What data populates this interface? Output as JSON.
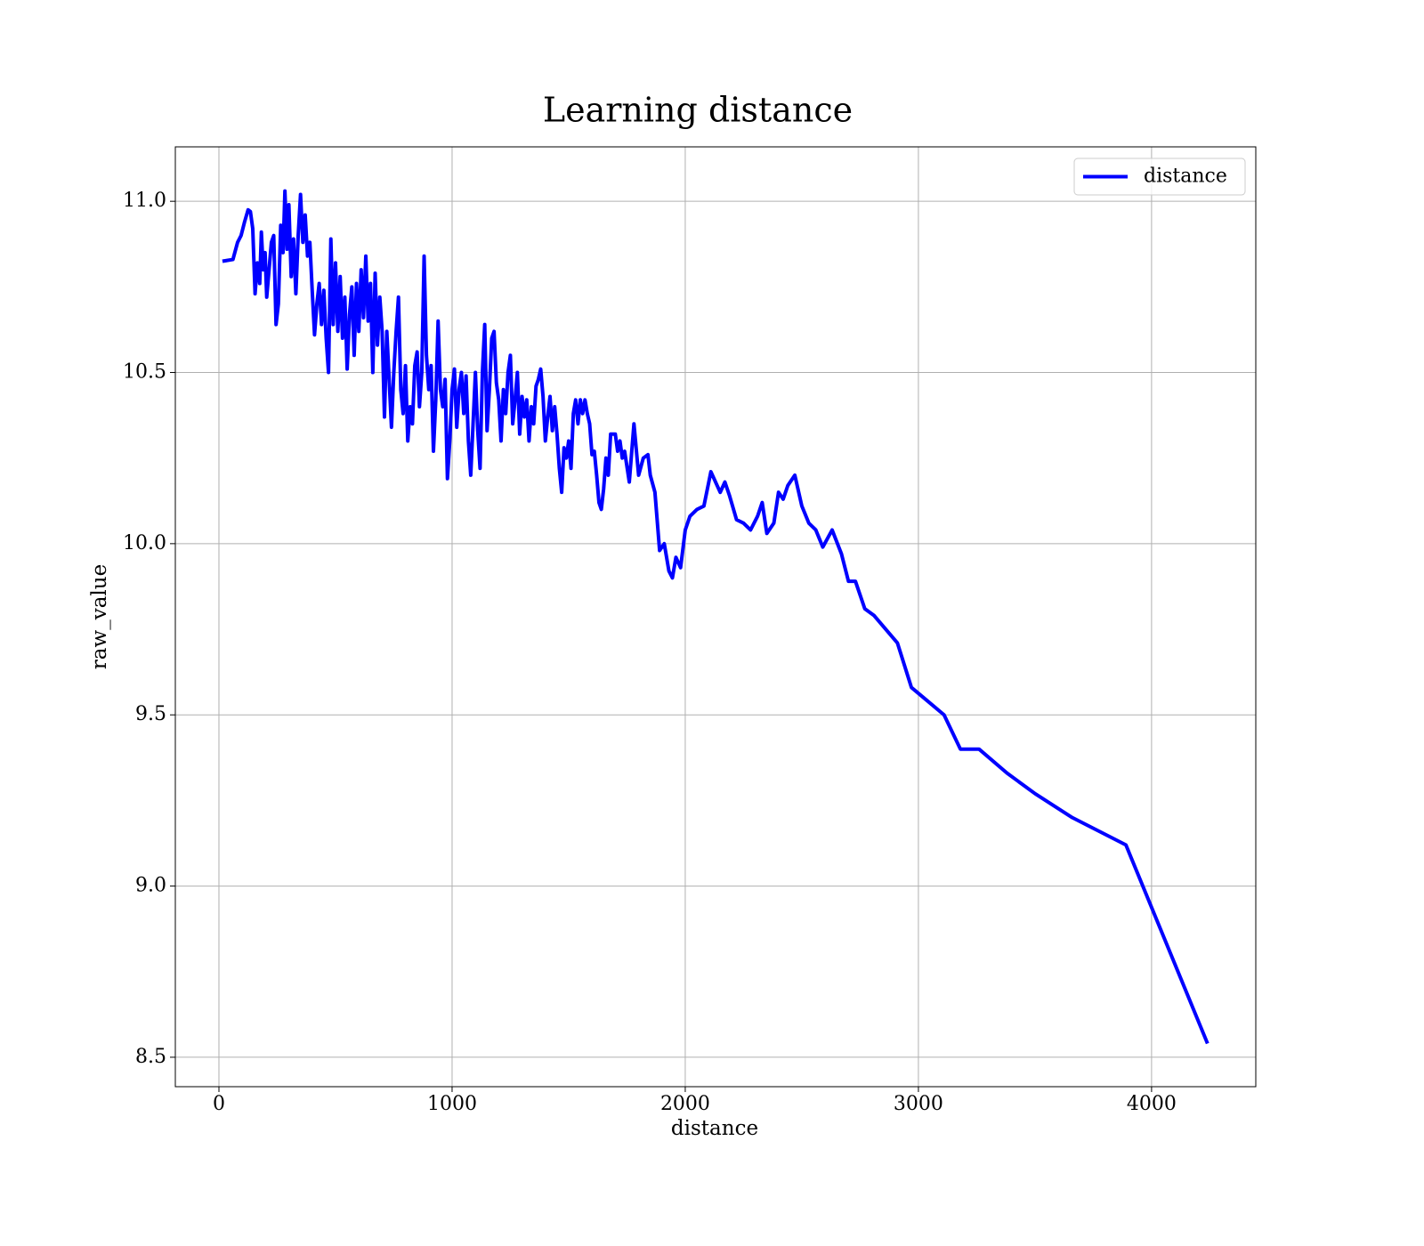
{
  "chart_data": {
    "type": "line",
    "title": "Learning distance",
    "x_label": "distance",
    "y_label": "raw_value",
    "x": [
      15,
      60,
      80,
      95,
      110,
      125,
      135,
      145,
      155,
      165,
      175,
      182,
      190,
      198,
      205,
      215,
      225,
      235,
      245,
      255,
      265,
      275,
      283,
      292,
      300,
      310,
      320,
      330,
      340,
      350,
      360,
      370,
      380,
      390,
      400,
      410,
      420,
      430,
      440,
      450,
      460,
      470,
      480,
      490,
      500,
      510,
      520,
      530,
      540,
      550,
      560,
      570,
      580,
      590,
      600,
      610,
      620,
      630,
      640,
      650,
      660,
      670,
      680,
      690,
      700,
      710,
      720,
      730,
      740,
      750,
      760,
      770,
      780,
      790,
      800,
      810,
      820,
      830,
      840,
      850,
      860,
      870,
      880,
      890,
      900,
      910,
      920,
      930,
      940,
      950,
      960,
      970,
      980,
      990,
      1000,
      1010,
      1020,
      1030,
      1040,
      1050,
      1060,
      1070,
      1080,
      1090,
      1100,
      1110,
      1120,
      1130,
      1140,
      1150,
      1160,
      1170,
      1180,
      1190,
      1200,
      1210,
      1220,
      1230,
      1240,
      1250,
      1260,
      1270,
      1280,
      1290,
      1300,
      1310,
      1320,
      1330,
      1340,
      1350,
      1360,
      1370,
      1380,
      1390,
      1400,
      1410,
      1420,
      1430,
      1440,
      1450,
      1460,
      1470,
      1480,
      1490,
      1500,
      1510,
      1520,
      1530,
      1540,
      1550,
      1560,
      1570,
      1580,
      1590,
      1600,
      1610,
      1620,
      1630,
      1640,
      1650,
      1660,
      1670,
      1680,
      1700,
      1710,
      1720,
      1730,
      1740,
      1760,
      1780,
      1800,
      1820,
      1840,
      1850,
      1870,
      1890,
      1910,
      1930,
      1945,
      1960,
      1980,
      2000,
      2020,
      2050,
      2080,
      2110,
      2150,
      2170,
      2190,
      2220,
      2250,
      2280,
      2310,
      2330,
      2350,
      2380,
      2400,
      2420,
      2440,
      2470,
      2500,
      2530,
      2560,
      2590,
      2630,
      2670,
      2700,
      2730,
      2770,
      2810,
      2860,
      2910,
      2970,
      3040,
      3110,
      3180,
      3260,
      3380,
      3500,
      3660,
      3890,
      4240
    ],
    "series": [
      {
        "name": "distance",
        "color": "#0000ff",
        "values": [
          10.825,
          10.83,
          10.88,
          10.9,
          10.94,
          10.975,
          10.97,
          10.92,
          10.73,
          10.82,
          10.76,
          10.91,
          10.8,
          10.85,
          10.72,
          10.8,
          10.88,
          10.9,
          10.64,
          10.7,
          10.93,
          10.85,
          11.03,
          10.86,
          10.99,
          10.78,
          10.89,
          10.73,
          10.9,
          11.02,
          10.88,
          10.96,
          10.84,
          10.88,
          10.74,
          10.61,
          10.7,
          10.76,
          10.64,
          10.74,
          10.6,
          10.5,
          10.89,
          10.64,
          10.82,
          10.62,
          10.78,
          10.6,
          10.72,
          10.51,
          10.67,
          10.75,
          10.55,
          10.76,
          10.62,
          10.8,
          10.66,
          10.84,
          10.65,
          10.76,
          10.5,
          10.79,
          10.58,
          10.72,
          10.62,
          10.37,
          10.62,
          10.48,
          10.34,
          10.5,
          10.62,
          10.72,
          10.45,
          10.38,
          10.52,
          10.3,
          10.4,
          10.35,
          10.52,
          10.56,
          10.4,
          10.5,
          10.84,
          10.55,
          10.45,
          10.52,
          10.27,
          10.42,
          10.65,
          10.45,
          10.4,
          10.48,
          10.19,
          10.3,
          10.45,
          10.51,
          10.34,
          10.45,
          10.5,
          10.38,
          10.49,
          10.3,
          10.2,
          10.35,
          10.5,
          10.33,
          10.22,
          10.5,
          10.64,
          10.33,
          10.45,
          10.6,
          10.62,
          10.47,
          10.42,
          10.3,
          10.45,
          10.38,
          10.5,
          10.55,
          10.35,
          10.42,
          10.5,
          10.32,
          10.43,
          10.37,
          10.42,
          10.3,
          10.4,
          10.35,
          10.46,
          10.48,
          10.51,
          10.43,
          10.3,
          10.37,
          10.43,
          10.33,
          10.4,
          10.32,
          10.22,
          10.15,
          10.28,
          10.25,
          10.3,
          10.22,
          10.38,
          10.42,
          10.35,
          10.42,
          10.38,
          10.42,
          10.38,
          10.35,
          10.26,
          10.27,
          10.2,
          10.12,
          10.1,
          10.16,
          10.25,
          10.2,
          10.32,
          10.32,
          10.27,
          10.3,
          10.25,
          10.27,
          10.18,
          10.35,
          10.2,
          10.25,
          10.26,
          10.2,
          10.15,
          9.98,
          10.0,
          9.92,
          9.9,
          9.96,
          9.93,
          10.04,
          10.08,
          10.1,
          10.11,
          10.21,
          10.15,
          10.18,
          10.14,
          10.07,
          10.06,
          10.04,
          10.08,
          10.12,
          10.03,
          10.06,
          10.15,
          10.13,
          10.17,
          10.2,
          10.11,
          10.06,
          10.04,
          9.99,
          10.04,
          9.97,
          9.89,
          9.89,
          9.81,
          9.79,
          9.75,
          9.71,
          9.58,
          9.54,
          9.5,
          9.4,
          9.4,
          9.33,
          9.27,
          9.2,
          9.12,
          8.54
        ]
      }
    ],
    "xlim": [
      -187,
      4447
    ],
    "ylim": [
      8.414,
      11.159
    ],
    "xticks": [
      0,
      1000,
      2000,
      3000,
      4000
    ],
    "yticks": [
      8.5,
      {
        "value": 9,
        "label": "9.0"
      },
      9.5,
      {
        "value": 10,
        "label": "10.0"
      },
      10.5,
      {
        "value": 11,
        "label": "11.0"
      }
    ],
    "grid": true,
    "legend": "upper-right"
  }
}
